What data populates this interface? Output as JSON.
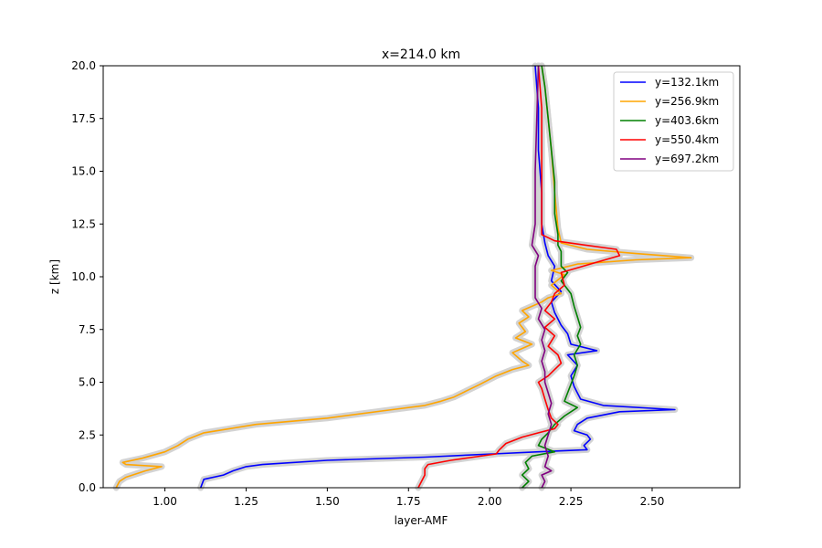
{
  "chart_data": {
    "type": "line",
    "title": "x=214.0 km",
    "xlabel": "layer-AMF",
    "ylabel": "z [km]",
    "xlim": [
      0.81,
      2.77
    ],
    "ylim": [
      0,
      20
    ],
    "xticks": [
      "1.00",
      "1.25",
      "1.50",
      "1.75",
      "2.00",
      "2.25",
      "2.50"
    ],
    "yticks": [
      "0.0",
      "2.5",
      "5.0",
      "7.5",
      "10.0",
      "12.5",
      "15.0",
      "17.5",
      "20.0"
    ],
    "grid": false,
    "legend_position": "top-right",
    "band_color": "#d3d3d3",
    "series": [
      {
        "name": "y=132.1km",
        "color": "#0000ff",
        "x": [
          1.11,
          1.12,
          1.18,
          1.21,
          1.25,
          1.3,
          1.5,
          1.8,
          2.01,
          2.15,
          2.3,
          2.29,
          2.31,
          2.3,
          2.26,
          2.27,
          2.3,
          2.4,
          2.57,
          2.35,
          2.28,
          2.26,
          2.25,
          2.27,
          2.24,
          2.33,
          2.25,
          2.24,
          2.22,
          2.2,
          2.19,
          2.22,
          2.19,
          2.2,
          2.18,
          2.17,
          2.16,
          2.16,
          2.15,
          2.15,
          2.14
        ],
        "y": [
          0,
          0.4,
          0.6,
          0.8,
          1.0,
          1.1,
          1.3,
          1.45,
          1.6,
          1.7,
          1.8,
          2.0,
          2.3,
          2.5,
          2.7,
          3.0,
          3.3,
          3.6,
          3.7,
          3.9,
          4.2,
          4.8,
          5.3,
          5.8,
          6.3,
          6.5,
          6.8,
          7.3,
          7.7,
          8.3,
          8.8,
          9.3,
          9.8,
          10.5,
          11.0,
          11.6,
          12.5,
          14.0,
          16.0,
          18.0,
          20.0
        ]
      },
      {
        "name": "y=256.9km",
        "color": "#ffa500",
        "x": [
          0.85,
          0.86,
          0.88,
          0.94,
          0.99,
          0.88,
          0.87,
          0.93,
          1.0,
          1.04,
          1.07,
          1.12,
          1.2,
          1.28,
          1.5,
          1.7,
          1.8,
          1.85,
          1.89,
          1.93,
          1.97,
          2.02,
          2.07,
          2.12,
          2.1,
          2.07,
          2.13,
          2.08,
          2.11,
          2.09,
          2.12,
          2.1,
          2.16,
          2.18,
          2.22,
          2.19,
          2.23,
          2.19,
          2.27,
          2.45,
          2.62,
          2.45,
          2.3,
          2.22,
          2.21,
          2.2,
          2.19,
          2.18,
          2.17,
          2.16
        ],
        "y": [
          0,
          0.3,
          0.5,
          0.8,
          1.0,
          1.1,
          1.2,
          1.4,
          1.7,
          2.0,
          2.3,
          2.6,
          2.8,
          3.0,
          3.3,
          3.7,
          3.9,
          4.1,
          4.3,
          4.6,
          4.9,
          5.3,
          5.6,
          5.8,
          6.0,
          6.4,
          6.8,
          7.1,
          7.4,
          7.8,
          8.1,
          8.4,
          8.8,
          9.0,
          9.2,
          9.6,
          10.1,
          10.3,
          10.6,
          10.8,
          10.9,
          11.1,
          11.3,
          11.6,
          12.3,
          14.0,
          16.0,
          17.5,
          19.0,
          20.0
        ]
      },
      {
        "name": "y=403.6km",
        "color": "#008000",
        "x": [
          2.1,
          2.12,
          2.1,
          2.12,
          2.11,
          2.13,
          2.2,
          2.15,
          2.16,
          2.18,
          2.2,
          2.23,
          2.27,
          2.23,
          2.24,
          2.25,
          2.26,
          2.27,
          2.26,
          2.28,
          2.27,
          2.28,
          2.27,
          2.26,
          2.25,
          2.22,
          2.24,
          2.22,
          2.22,
          2.22,
          2.21,
          2.21,
          2.2,
          2.2,
          2.19,
          2.18,
          2.17,
          2.16
        ],
        "y": [
          0,
          0.3,
          0.6,
          0.9,
          1.2,
          1.5,
          1.7,
          2.0,
          2.3,
          2.6,
          3.0,
          3.4,
          3.8,
          4.1,
          4.5,
          4.9,
          5.3,
          5.8,
          6.3,
          6.8,
          7.2,
          7.6,
          8.1,
          8.6,
          9.2,
          9.8,
          10.2,
          10.5,
          10.8,
          11.2,
          11.5,
          12.0,
          13.0,
          14.5,
          16.0,
          17.5,
          19.0,
          20.0
        ]
      },
      {
        "name": "y=550.4km",
        "color": "#ff0000",
        "x": [
          1.78,
          1.79,
          1.8,
          1.8,
          1.81,
          1.88,
          1.95,
          2.02,
          2.03,
          2.05,
          2.1,
          2.15,
          2.2,
          2.21,
          2.19,
          2.18,
          2.17,
          2.16,
          2.15,
          2.18,
          2.2,
          2.22,
          2.21,
          2.18,
          2.2,
          2.17,
          2.2,
          2.17,
          2.19,
          2.2,
          2.23,
          2.22,
          2.4,
          2.39,
          2.2,
          2.16,
          2.16,
          2.16,
          2.16,
          2.15
        ],
        "y": [
          0,
          0.3,
          0.6,
          0.9,
          1.1,
          1.3,
          1.45,
          1.6,
          1.8,
          2.1,
          2.4,
          2.6,
          2.8,
          3.0,
          3.3,
          3.7,
          4.2,
          4.7,
          5.0,
          5.3,
          5.6,
          5.9,
          6.3,
          6.7,
          7.2,
          7.6,
          8.0,
          8.4,
          8.8,
          9.2,
          9.6,
          10.2,
          11.0,
          11.3,
          11.7,
          12.0,
          14.0,
          16.0,
          18.0,
          20.0
        ]
      },
      {
        "name": "y=697.2km",
        "color": "#800080",
        "x": [
          2.16,
          2.17,
          2.16,
          2.19,
          2.17,
          2.18,
          2.17,
          2.18,
          2.19,
          2.18,
          2.19,
          2.18,
          2.17,
          2.17,
          2.16,
          2.17,
          2.16,
          2.17,
          2.15,
          2.16,
          2.14,
          2.14,
          2.14,
          2.14,
          2.15,
          2.13,
          2.14,
          2.14,
          2.15
        ],
        "y": [
          0,
          0.3,
          0.6,
          0.8,
          1.0,
          1.5,
          2.0,
          2.5,
          3.0,
          3.5,
          4.0,
          4.5,
          5.0,
          5.5,
          6.0,
          6.5,
          7.0,
          7.5,
          8.0,
          8.5,
          9.0,
          9.5,
          10.0,
          10.5,
          11.0,
          11.5,
          12.5,
          15.0,
          20.0
        ]
      }
    ]
  }
}
